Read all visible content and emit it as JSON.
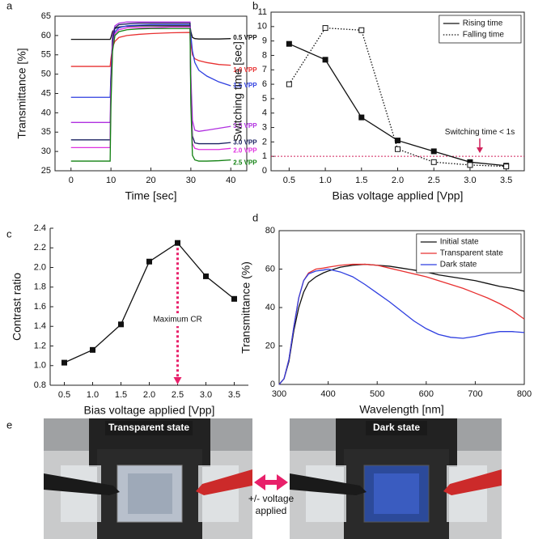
{
  "chart_data": [
    {
      "type": "line",
      "panel_label": "a",
      "xlabel": "Time [sec]",
      "ylabel": "Transmittance [%]",
      "xlim": [
        -4,
        44
      ],
      "xticks": [
        0,
        10,
        20,
        30,
        40
      ],
      "ylim": [
        25,
        65
      ],
      "yticks": [
        25,
        30,
        35,
        40,
        45,
        50,
        55,
        60,
        65
      ],
      "end_labels": true,
      "x": [
        0,
        9.8,
        10,
        10.4,
        11,
        12,
        14,
        17,
        20,
        25,
        29.8,
        30,
        30.4,
        31,
        32,
        34,
        37,
        40
      ],
      "series": [
        {
          "name": "0.5 VPP",
          "color": "#111111",
          "values": [
            59,
            59,
            59.5,
            61,
            61.8,
            62.2,
            62.4,
            62.5,
            62.5,
            62.5,
            62.5,
            61,
            59.5,
            59.2,
            59.1,
            59.1,
            59.1,
            59.2
          ]
        },
        {
          "name": "1.0 VPP",
          "color": "#e83030",
          "values": [
            52,
            52,
            54,
            57,
            58.5,
            59.5,
            60,
            60.3,
            60.5,
            60.7,
            60.8,
            58,
            55,
            54,
            53.5,
            53,
            52.5,
            52.3
          ]
        },
        {
          "name": "1.5 VPP",
          "color": "#2f3fe0",
          "values": [
            44,
            44,
            50,
            58,
            61,
            62,
            62.5,
            62.7,
            62.8,
            62.8,
            62.8,
            60,
            56,
            53,
            51,
            49.5,
            48,
            47
          ]
        },
        {
          "name": "3.5 VPP",
          "color": "#b030e0",
          "values": [
            37.5,
            37.5,
            50,
            60,
            62.5,
            63.2,
            63.5,
            63.5,
            63.5,
            63.5,
            63.5,
            50,
            38,
            35.5,
            35.2,
            35.5,
            36,
            36.5
          ]
        },
        {
          "name": "3.0 VPP",
          "color": "#1a2060",
          "values": [
            33,
            33,
            48,
            59,
            62,
            62.8,
            63,
            63.2,
            63.2,
            63.2,
            63.2,
            45,
            34,
            32.2,
            32,
            32,
            32,
            32.3
          ]
        },
        {
          "name": "2.0 VPP",
          "color": "#e030e0",
          "values": [
            31,
            31,
            45,
            57,
            60.5,
            61.5,
            62,
            62,
            62,
            62.2,
            62.2,
            44,
            32,
            30.8,
            30.5,
            30.5,
            30.5,
            30.8
          ]
        },
        {
          "name": "2.5 VPP",
          "color": "#108010",
          "values": [
            27.5,
            27.5,
            42,
            56,
            60,
            61,
            61.5,
            61.7,
            61.8,
            61.8,
            61.8,
            42,
            29,
            27.8,
            27.5,
            27.5,
            27.6,
            27.8
          ]
        }
      ]
    },
    {
      "type": "line",
      "panel_label": "b",
      "xlabel": "Bias voltage applied [Vpp]",
      "ylabel": "Switching time [sec]",
      "xlim": [
        0.25,
        3.75
      ],
      "xticks": [
        0.5,
        {
          "value": 1,
          "label": "1.0"
        },
        1.5,
        {
          "value": 2,
          "label": "2.0"
        },
        2.5,
        {
          "value": 3,
          "label": "3.0"
        },
        3.5
      ],
      "ylim": [
        0,
        11
      ],
      "yticks": [
        0,
        1,
        2,
        3,
        4,
        5,
        6,
        7,
        8,
        9,
        10,
        11
      ],
      "legend": "upper right",
      "threshold": 1,
      "threshold_color": "#d0205a",
      "annotation": "Switching time < 1s",
      "x": [
        0.5,
        1,
        1.5,
        2,
        2.5,
        3,
        3.5
      ],
      "series": [
        {
          "name": "Rising time",
          "color": "#111111",
          "dash": "solid",
          "marker": "filled",
          "values": [
            8.8,
            7.7,
            3.7,
            2.1,
            1.35,
            0.6,
            0.35
          ]
        },
        {
          "name": "Falling time",
          "color": "#111111",
          "dash": "dotted",
          "marker": "open",
          "values": [
            6.0,
            9.9,
            9.75,
            1.5,
            0.6,
            0.4,
            0.3
          ]
        }
      ]
    },
    {
      "type": "line",
      "panel_label": "c",
      "xlabel": "Bias voltage applied [Vpp]",
      "ylabel": "Contrast ratio",
      "xlim": [
        0.25,
        3.75
      ],
      "xticks": [
        0.5,
        {
          "value": 1,
          "label": "1.0"
        },
        1.5,
        {
          "value": 2,
          "label": "2.0"
        },
        2.5,
        {
          "value": 3,
          "label": "3.0"
        },
        3.5
      ],
      "ylim": [
        0.8,
        2.4
      ],
      "yticks": [
        0.8,
        {
          "value": 1,
          "label": "1.0"
        },
        1.2,
        1.4,
        1.6,
        1.8,
        {
          "value": 2,
          "label": "2.0"
        },
        2.2,
        2.4
      ],
      "annotation": "Maximum CR",
      "annotation_color": "#e8206a",
      "x": [
        0.5,
        1,
        1.5,
        2,
        2.5,
        3,
        3.5
      ],
      "series": [
        {
          "name": "Contrast ratio",
          "color": "#111111",
          "dash": "solid",
          "marker": "filled",
          "values": [
            1.03,
            1.16,
            1.42,
            2.06,
            2.25,
            1.91,
            1.68
          ]
        }
      ]
    },
    {
      "type": "line",
      "panel_label": "d",
      "xlabel": "Wavelength [nm]",
      "ylabel": "Transmittance (%)",
      "xlim": [
        300,
        800
      ],
      "xticks": [
        300,
        400,
        500,
        600,
        700,
        800
      ],
      "ylim": [
        0,
        80
      ],
      "yticks": [
        0,
        20,
        40,
        60,
        80
      ],
      "legend": "upper right",
      "x": [
        300,
        310,
        320,
        330,
        340,
        350,
        360,
        375,
        390,
        400,
        425,
        450,
        475,
        500,
        525,
        550,
        575,
        600,
        625,
        650,
        675,
        700,
        725,
        750,
        775,
        800
      ],
      "series": [
        {
          "name": "Initial state",
          "color": "#111111",
          "values": [
            0,
            3,
            12,
            28,
            40,
            48,
            53,
            56,
            58,
            59,
            61,
            62,
            62.5,
            62,
            61.5,
            60.5,
            59.5,
            58.5,
            57,
            56,
            55,
            54,
            52.5,
            51,
            50,
            48.5
          ]
        },
        {
          "name": "Transparent state",
          "color": "#e83030",
          "values": [
            0,
            3,
            13,
            30,
            45,
            54,
            58,
            60,
            60.5,
            61,
            62,
            62.5,
            62.5,
            62,
            60.5,
            59,
            57.5,
            56,
            54,
            52,
            50,
            47.5,
            45,
            42,
            38.5,
            34
          ]
        },
        {
          "name": "Dark state",
          "color": "#2f3fe0",
          "values": [
            0,
            3,
            13,
            30,
            45,
            54,
            57.5,
            59,
            59.5,
            60,
            58.5,
            56,
            52,
            47.5,
            43,
            38,
            33,
            29,
            26,
            24.5,
            24,
            25,
            26.5,
            27.5,
            27.5,
            27
          ]
        }
      ]
    }
  ],
  "photo_panel": {
    "panel_label": "e",
    "left_caption": "Transparent state",
    "right_caption": "Dark state",
    "arrow_label": [
      "+/- voltage",
      "applied"
    ]
  }
}
